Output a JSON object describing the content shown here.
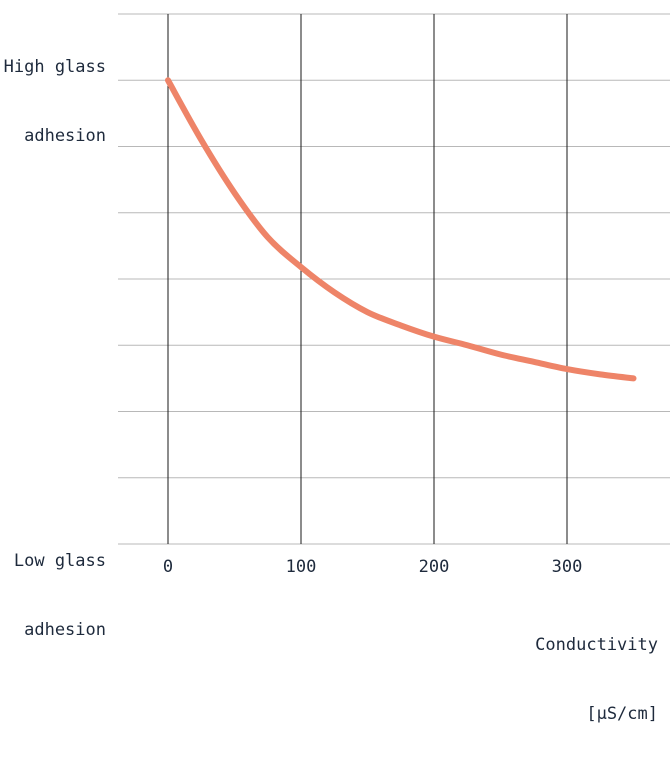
{
  "chart_data": {
    "type": "line",
    "title": "",
    "xlabel": "Conductivity",
    "xlabel_unit": "[µS/cm]",
    "ylabel": "",
    "y_top_label": {
      "line1": "High glass",
      "line2": "adhesion"
    },
    "y_bottom_label": {
      "line1": "Low glass",
      "line2": "adhesion"
    },
    "x_ticks": [
      "0",
      "100",
      "200",
      "300"
    ],
    "xlim": [
      0,
      350
    ],
    "ylim": [
      0,
      8
    ],
    "grid": true,
    "series": [
      {
        "color": "#ee8468",
        "points": [
          [
            0,
            7.0
          ],
          [
            25,
            6.1
          ],
          [
            50,
            5.3
          ],
          [
            75,
            4.63
          ],
          [
            100,
            4.18
          ],
          [
            125,
            3.8
          ],
          [
            150,
            3.5
          ],
          [
            175,
            3.3
          ],
          [
            200,
            3.13
          ],
          [
            225,
            3.0
          ],
          [
            250,
            2.86
          ],
          [
            275,
            2.75
          ],
          [
            300,
            2.64
          ],
          [
            325,
            2.56
          ],
          [
            350,
            2.5
          ]
        ]
      }
    ],
    "colors": {
      "line": "#ee8468",
      "vgrid": "#1a1a1a",
      "hgrid": "#b8b8b8",
      "text": "#1e2a3c"
    }
  }
}
